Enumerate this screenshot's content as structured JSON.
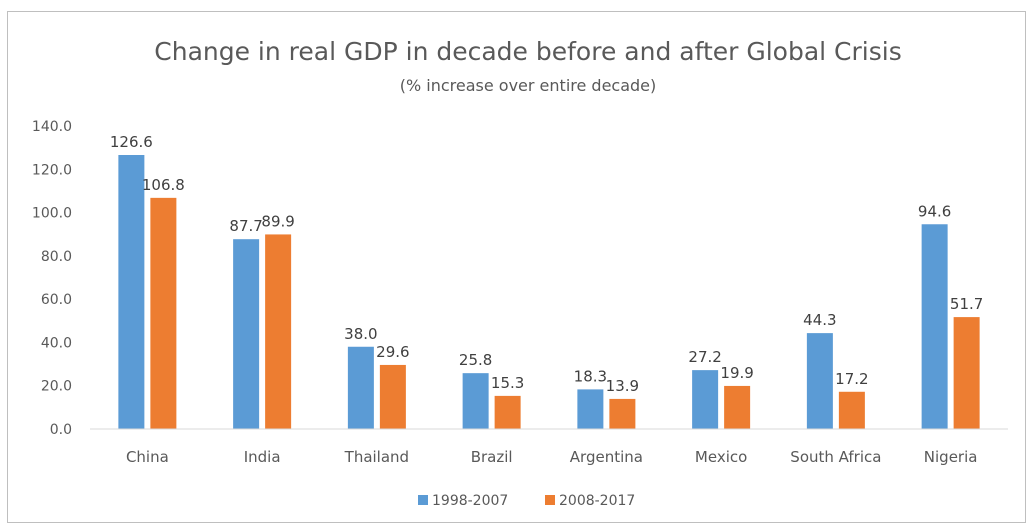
{
  "chart_data": {
    "type": "bar",
    "title": "Change in real GDP in decade before and after Global Crisis",
    "subtitle": "(% increase over entire decade)",
    "categories": [
      "China",
      "India",
      "Thailand",
      "Brazil",
      "Argentina",
      "Mexico",
      "South Africa",
      "Nigeria"
    ],
    "series": [
      {
        "name": "1998-2007",
        "color": "#5b9bd5",
        "values": [
          126.6,
          87.7,
          38.0,
          25.8,
          18.3,
          27.2,
          44.3,
          94.6
        ]
      },
      {
        "name": "2008-2017",
        "color": "#ed7d31",
        "values": [
          106.8,
          89.9,
          29.6,
          15.3,
          13.9,
          19.9,
          17.2,
          51.7
        ]
      }
    ],
    "yticks": [
      "0.0",
      "20.0",
      "40.0",
      "60.0",
      "80.0",
      "100.0",
      "120.0",
      "140.0"
    ],
    "ylim": [
      0,
      140
    ],
    "grid": false,
    "legend_position": "bottom"
  }
}
